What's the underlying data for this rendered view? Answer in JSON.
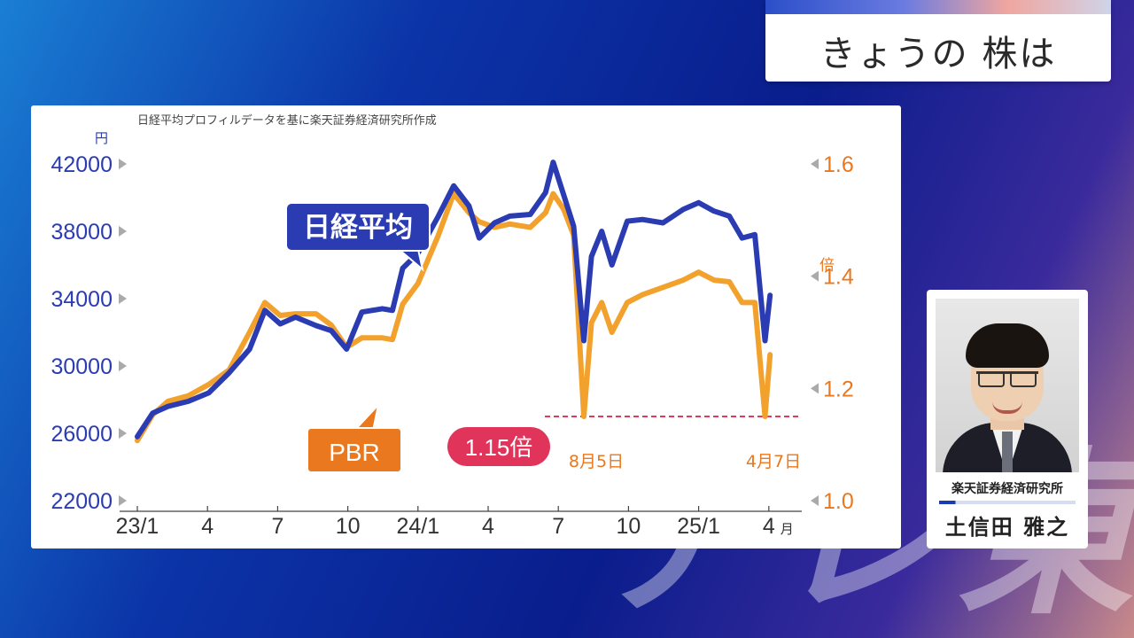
{
  "header": {
    "title": "きょうの 株は"
  },
  "watermark": "テレ東",
  "presenter": {
    "affiliation": "楽天証券経済研究所",
    "name": "土信田 雅之"
  },
  "chart_data": {
    "type": "line",
    "source": "日経平均プロフィルデータを基に楽天証券経済研究所作成",
    "left_unit": "円",
    "right_unit": "倍",
    "x_ticks": [
      "23/1",
      "4",
      "7",
      "10",
      "24/1",
      "4",
      "7",
      "10",
      "25/1",
      "4"
    ],
    "x_tick_suffix": "月",
    "left_axis": {
      "min": 22000,
      "max": 42000,
      "ticks": [
        "42000",
        "38000",
        "34000",
        "30000",
        "26000",
        "22000"
      ]
    },
    "right_axis": {
      "min": 1.0,
      "max": 1.6,
      "ticks": [
        "1.6",
        "1.4",
        "1.2",
        "1.0"
      ]
    },
    "series": [
      {
        "name": "日経平均",
        "axis": "left",
        "color": "#2b3cb3",
        "points": [
          [
            0,
            25800
          ],
          [
            0.3,
            27200
          ],
          [
            0.6,
            27600
          ],
          [
            1.0,
            27900
          ],
          [
            1.4,
            28400
          ],
          [
            1.8,
            29600
          ],
          [
            2.2,
            31000
          ],
          [
            2.5,
            33300
          ],
          [
            2.8,
            32500
          ],
          [
            3.1,
            32900
          ],
          [
            3.5,
            32400
          ],
          [
            3.8,
            32100
          ],
          [
            4.1,
            31000
          ],
          [
            4.4,
            33200
          ],
          [
            4.8,
            33400
          ],
          [
            5.0,
            33300
          ],
          [
            5.2,
            35800
          ],
          [
            5.5,
            36700
          ],
          [
            5.9,
            38900
          ],
          [
            6.2,
            40700
          ],
          [
            6.5,
            39500
          ],
          [
            6.7,
            37600
          ],
          [
            7.0,
            38500
          ],
          [
            7.3,
            38900
          ],
          [
            7.7,
            39000
          ],
          [
            8.0,
            40300
          ],
          [
            8.15,
            42100
          ],
          [
            8.35,
            40200
          ],
          [
            8.55,
            38300
          ],
          [
            8.75,
            31500
          ],
          [
            8.9,
            36500
          ],
          [
            9.1,
            38000
          ],
          [
            9.3,
            36000
          ],
          [
            9.6,
            38600
          ],
          [
            9.9,
            38700
          ],
          [
            10.3,
            38500
          ],
          [
            10.7,
            39300
          ],
          [
            11.0,
            39700
          ],
          [
            11.3,
            39200
          ],
          [
            11.6,
            38900
          ],
          [
            11.85,
            37600
          ],
          [
            12.1,
            37800
          ],
          [
            12.3,
            31500
          ],
          [
            12.4,
            34200
          ]
        ]
      },
      {
        "name": "PBR",
        "axis": "right",
        "color": "#f3a12d",
        "points": [
          [
            0,
            1.107
          ],
          [
            0.3,
            1.153
          ],
          [
            0.6,
            1.177
          ],
          [
            1.0,
            1.187
          ],
          [
            1.4,
            1.207
          ],
          [
            1.8,
            1.233
          ],
          [
            2.2,
            1.3
          ],
          [
            2.5,
            1.353
          ],
          [
            2.8,
            1.33
          ],
          [
            3.1,
            1.333
          ],
          [
            3.5,
            1.333
          ],
          [
            3.8,
            1.313
          ],
          [
            4.1,
            1.273
          ],
          [
            4.4,
            1.29
          ],
          [
            4.8,
            1.29
          ],
          [
            5.0,
            1.287
          ],
          [
            5.2,
            1.35
          ],
          [
            5.5,
            1.387
          ],
          [
            5.9,
            1.473
          ],
          [
            6.2,
            1.547
          ],
          [
            6.5,
            1.513
          ],
          [
            6.7,
            1.497
          ],
          [
            7.0,
            1.487
          ],
          [
            7.3,
            1.493
          ],
          [
            7.7,
            1.487
          ],
          [
            8.0,
            1.513
          ],
          [
            8.15,
            1.547
          ],
          [
            8.35,
            1.52
          ],
          [
            8.55,
            1.473
          ],
          [
            8.75,
            1.15
          ],
          [
            8.9,
            1.317
          ],
          [
            9.1,
            1.353
          ],
          [
            9.3,
            1.3
          ],
          [
            9.6,
            1.353
          ],
          [
            9.9,
            1.367
          ],
          [
            10.3,
            1.38
          ],
          [
            10.7,
            1.393
          ],
          [
            11.0,
            1.407
          ],
          [
            11.3,
            1.393
          ],
          [
            11.6,
            1.39
          ],
          [
            11.85,
            1.353
          ],
          [
            12.1,
            1.353
          ],
          [
            12.3,
            1.15
          ],
          [
            12.4,
            1.26
          ]
        ]
      }
    ],
    "annotations": {
      "nikkei_label": "日経平均",
      "pbr_label": "PBR",
      "value_badge": "1.15倍",
      "date_a": "8月5日",
      "date_b": "4月7日",
      "reference_value": 1.15
    }
  }
}
